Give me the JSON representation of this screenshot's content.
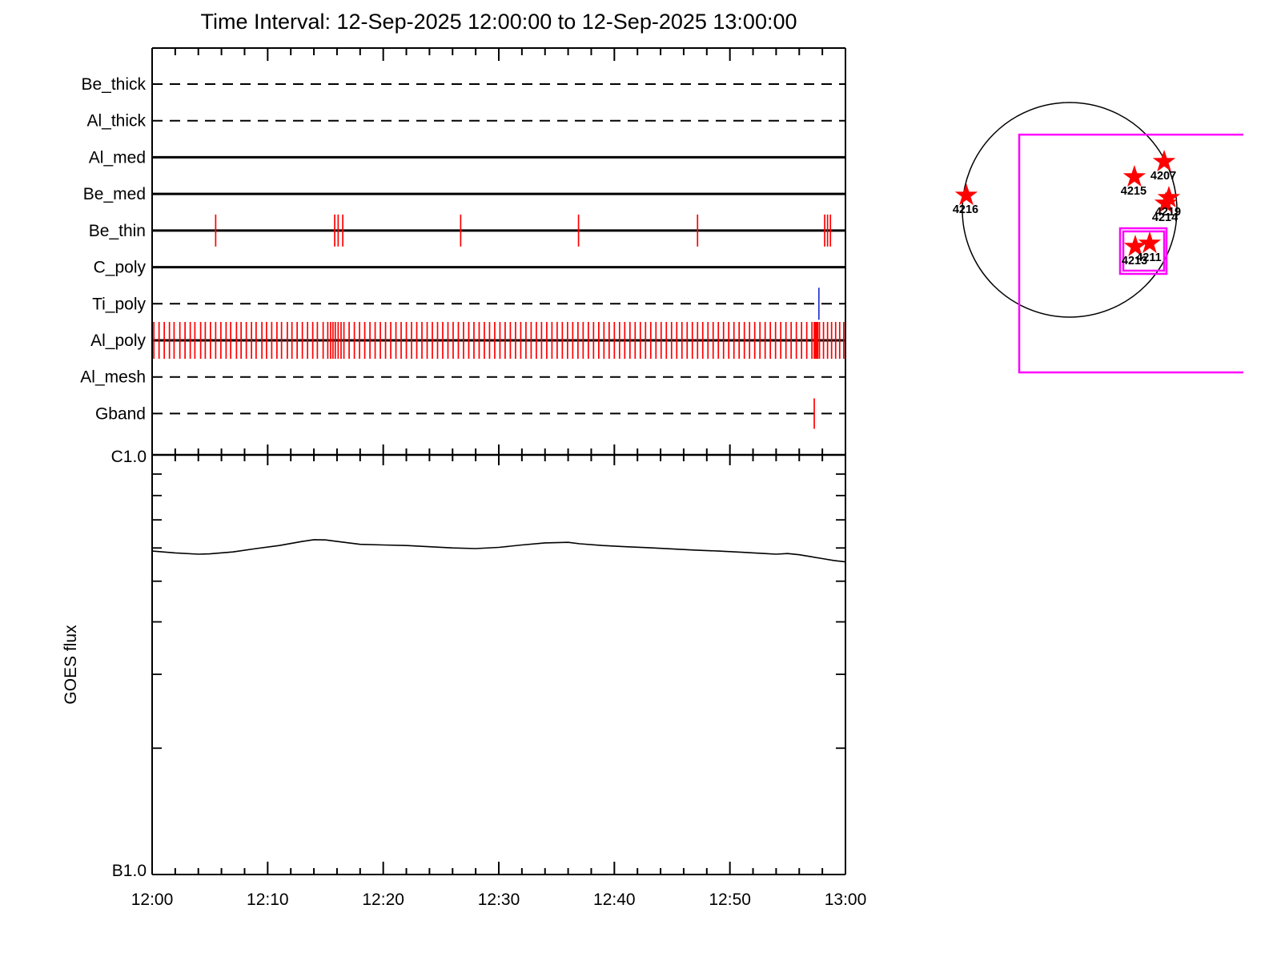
{
  "title": "Time Interval: 12-Sep-2025 12:00:00 to 12-Sep-2025 13:00:00",
  "colors": {
    "axis": "#000000",
    "event_tick": "#ff0000",
    "special_tick": "#2233cc",
    "fov_box": "#ff00ff",
    "star": "#ff0000",
    "goes_line": "#000000"
  },
  "time_axis": {
    "tick_labels": [
      "12:00",
      "12:10",
      "12:20",
      "12:30",
      "12:40",
      "12:50",
      "13:00"
    ],
    "duration_min": 60,
    "major_step_min": 10,
    "minor_step_min": 2
  },
  "goes_labels": {
    "ylabel": "GOES flux",
    "y_top": "C1.0",
    "y_bottom": "B1.0"
  },
  "chart_data": [
    {
      "type": "event-timeline",
      "description": "XRT filter exposure timeline, red ticks = exposures",
      "rows": [
        {
          "label": "Be_thick",
          "line": "dashed",
          "ticks": []
        },
        {
          "label": "Al_thick",
          "line": "dashed",
          "ticks": []
        },
        {
          "label": "Al_med",
          "line": "solid",
          "ticks": []
        },
        {
          "label": "Be_med",
          "line": "solid",
          "ticks": []
        },
        {
          "label": "Be_thin",
          "line": "solid",
          "ticks": [
            5.5,
            15.8,
            16.1,
            16.5,
            26.7,
            36.9,
            47.2,
            58.2,
            58.45,
            58.7
          ]
        },
        {
          "label": "C_poly",
          "line": "solid",
          "ticks": []
        },
        {
          "label": "Ti_poly",
          "line": "dashed",
          "ticks": [
            57.7
          ],
          "tick_color": "#2233cc"
        },
        {
          "label": "Al_poly",
          "line": "solid",
          "ticks": [
            0.15,
            0.6,
            1.05,
            1.5,
            1.9,
            2.4,
            2.85,
            3.3,
            3.7,
            4.2,
            4.6,
            5.05,
            5.5,
            5.95,
            6.4,
            6.8,
            7.3,
            7.7,
            8.15,
            8.6,
            9.0,
            9.5,
            9.9,
            10.35,
            10.8,
            11.2,
            11.7,
            12.1,
            12.55,
            13.0,
            13.45,
            13.9,
            14.3,
            14.8,
            15.2,
            15.45,
            15.65,
            15.85,
            16.1,
            16.35,
            16.6,
            17.05,
            17.5,
            17.95,
            18.4,
            18.85,
            19.3,
            19.75,
            20.2,
            20.65,
            21.1,
            21.55,
            22.0,
            22.45,
            22.9,
            23.35,
            23.8,
            24.25,
            24.7,
            25.15,
            25.6,
            26.05,
            26.5,
            26.95,
            27.4,
            27.85,
            28.3,
            28.75,
            29.2,
            29.65,
            30.1,
            30.55,
            31.0,
            31.45,
            31.9,
            32.35,
            32.8,
            33.25,
            33.7,
            34.15,
            34.6,
            35.05,
            35.5,
            35.95,
            36.4,
            36.85,
            37.3,
            37.75,
            38.2,
            38.65,
            39.1,
            39.55,
            40.0,
            40.45,
            40.9,
            41.35,
            41.8,
            42.25,
            42.7,
            43.15,
            43.6,
            44.05,
            44.5,
            44.95,
            45.4,
            45.85,
            46.3,
            46.75,
            47.2,
            47.65,
            48.1,
            48.55,
            49.0,
            49.45,
            49.9,
            50.35,
            50.8,
            51.25,
            51.7,
            52.15,
            52.6,
            53.05,
            53.5,
            53.95,
            54.4,
            54.85,
            55.3,
            55.75,
            56.2,
            56.65,
            57.1,
            57.3,
            57.4,
            57.5,
            57.6,
            57.75,
            58.1,
            58.45,
            58.8,
            59.15,
            59.5,
            59.85
          ]
        },
        {
          "label": "Al_mesh",
          "line": "dashed",
          "ticks": []
        },
        {
          "label": "Gband",
          "line": "dashed",
          "ticks": [
            57.3
          ]
        }
      ]
    },
    {
      "type": "line",
      "title": "GOES X-ray flux",
      "y_scale": "log",
      "y_top_class": "C1.0",
      "y_bottom_class": "B1.0",
      "x_minutes": [
        0,
        2,
        4,
        5,
        7,
        9,
        11,
        13,
        14,
        15,
        16,
        18,
        20,
        22,
        24,
        26,
        28,
        30,
        32,
        34,
        36,
        37,
        39,
        41,
        43,
        45,
        47,
        49,
        51,
        53,
        54,
        55,
        56,
        57,
        58,
        59,
        60
      ],
      "flux_b_units": [
        5.9,
        5.84,
        5.8,
        5.81,
        5.87,
        5.98,
        6.08,
        6.22,
        6.28,
        6.27,
        6.22,
        6.12,
        6.1,
        6.08,
        6.04,
        6.0,
        5.98,
        6.02,
        6.1,
        6.17,
        6.19,
        6.14,
        6.08,
        6.04,
        6.01,
        5.97,
        5.93,
        5.9,
        5.86,
        5.82,
        5.8,
        5.82,
        5.78,
        5.72,
        5.66,
        5.6,
        5.56
      ]
    },
    {
      "type": "solar-map",
      "description": "Solar disk with NOAA active regions and XRT fields of view",
      "active_regions": [
        {
          "noaa": "4216",
          "x": -0.963,
          "y": -0.134
        },
        {
          "noaa": "4215",
          "x": 0.604,
          "y": -0.306
        },
        {
          "noaa": "4207",
          "x": 0.881,
          "y": -0.448
        },
        {
          "noaa": "4219",
          "x": 0.925,
          "y": -0.112
        },
        {
          "noaa": "4214",
          "x": 0.896,
          "y": -0.06
        },
        {
          "noaa": "4213",
          "x": 0.612,
          "y": 0.343
        },
        {
          "noaa": "4211",
          "x": 0.746,
          "y": 0.313
        }
      ],
      "fov_boxes": [
        {
          "x1": -0.47,
          "y1": -0.701,
          "x2": 1.619,
          "y2": 1.515,
          "clipped_right": true
        },
        {
          "x1": 0.47,
          "y1": 0.172,
          "x2": 0.903,
          "y2": 0.597,
          "clipped_right": false
        },
        {
          "x1": 0.5,
          "y1": 0.201,
          "x2": 0.881,
          "y2": 0.567,
          "clipped_right": false
        }
      ]
    }
  ]
}
